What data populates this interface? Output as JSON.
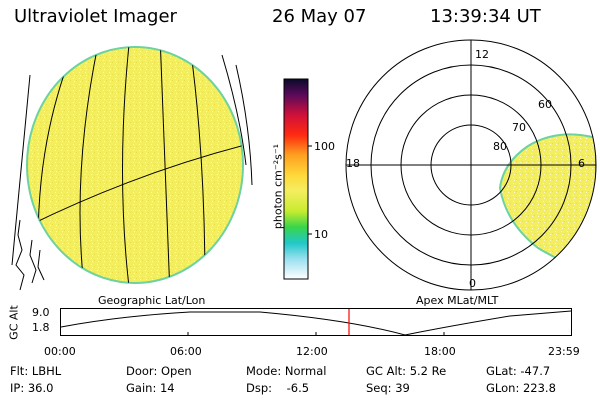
{
  "header": {
    "instrument": "Ultraviolet Imager",
    "date": "26 May 07",
    "time": "13:39:34 UT"
  },
  "colorbar": {
    "label": "photon cm⁻²s⁻¹",
    "tick_100": "100",
    "tick_10": "10"
  },
  "left_panel": {
    "caption": "Geographic Lat/Lon"
  },
  "right_panel": {
    "caption": "Apex MLat/MLT",
    "mlt_12": "12",
    "mlt_18": "18",
    "mlt_6": "6",
    "mlt_0": "0",
    "mlat_60": "60",
    "mlat_70": "70",
    "mlat_80": "80"
  },
  "orbit": {
    "ylabel": "GC Alt",
    "ytick_top": "9.0",
    "ytick_bottom": "1.8",
    "xticks": [
      "00:00",
      "06:00",
      "12:00",
      "18:00",
      "23:59"
    ]
  },
  "info": {
    "flt": "Flt: LBHL",
    "ip": "IP: 36.0",
    "door": "Door: Open",
    "gain": "Gain: 14",
    "mode": "Mode: Normal",
    "dsp": "Dsp:    -6.5",
    "gcalt": "GC Alt: 5.2 Re",
    "seq": "Seq: 39",
    "glat": "GLat: -47.7",
    "glon": "GLon: 223.8"
  },
  "colors": {
    "aurora_yellow": "#f4ec5a",
    "marker_red": "#ff0000"
  }
}
